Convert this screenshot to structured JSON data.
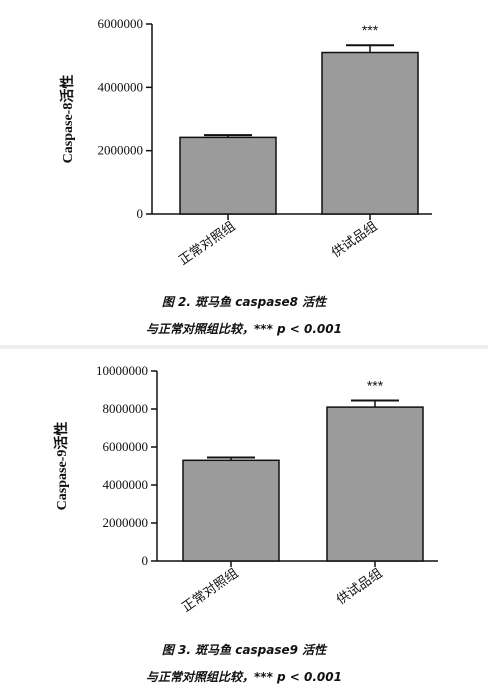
{
  "figures": [
    {
      "caption_line1": "图 2.  斑马鱼 caspase8 活性",
      "caption_line2": "与正常对照组比较，*** p < 0.001"
    },
    {
      "caption_line1": "图 3.  斑马鱼 caspase9 活性",
      "caption_line2": "与正常对照组比较，*** p < 0.001"
    }
  ],
  "colors": {
    "bar_fill": "#9b9b9b",
    "axis": "#111111"
  },
  "chart_data": [
    {
      "type": "bar",
      "categories": [
        "正常对照组",
        "供试品组"
      ],
      "values": [
        2420000,
        5100000
      ],
      "errors": [
        70000,
        230000
      ],
      "significance": [
        "",
        "***"
      ],
      "ylabel": "Caspase-8活性",
      "ylim": [
        0,
        6000000
      ],
      "yticks": [
        "0",
        "2000000",
        "4000000",
        "6000000"
      ],
      "ytick_values": [
        0,
        2000000,
        4000000,
        6000000
      ],
      "grid": false
    },
    {
      "type": "bar",
      "categories": [
        "正常对照组",
        "供试品组"
      ],
      "values": [
        5300000,
        8100000
      ],
      "errors": [
        150000,
        350000
      ],
      "significance": [
        "",
        "***"
      ],
      "ylabel": "Caspase-9活性",
      "ylim": [
        0,
        10000000
      ],
      "yticks": [
        "0",
        "2000000",
        "4000000",
        "6000000",
        "8000000",
        "10000000"
      ],
      "ytick_values": [
        0,
        2000000,
        4000000,
        6000000,
        8000000,
        10000000
      ],
      "grid": false
    }
  ]
}
